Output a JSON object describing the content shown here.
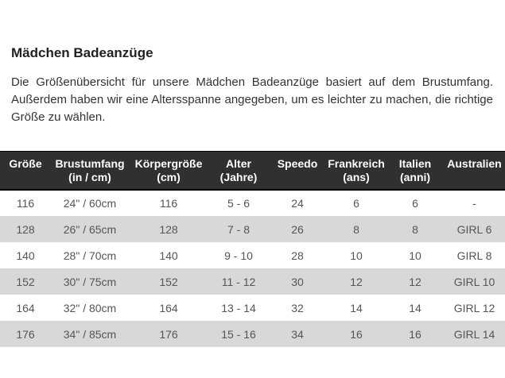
{
  "page": {
    "title": "Mädchen Badeanzüge",
    "intro": "Die Größenübersicht für unsere Mädchen Badeanzüge basiert auf dem Brustumfang. Außerdem haben wir eine Altersspanne angegeben, um es leichter zu machen, die richtige Größe zu wählen."
  },
  "size_table": {
    "columns": [
      {
        "label": "Größe",
        "sub": ""
      },
      {
        "label": "Brustumfang",
        "sub": "(in / cm)"
      },
      {
        "label": "Körpergröße",
        "sub": "(cm)"
      },
      {
        "label": "Alter",
        "sub": "(Jahre)"
      },
      {
        "label": "Speedo",
        "sub": ""
      },
      {
        "label": "Frankreich",
        "sub": "(ans)"
      },
      {
        "label": "Italien",
        "sub": "(anni)"
      },
      {
        "label": "Australien",
        "sub": ""
      }
    ],
    "rows": [
      [
        "116",
        "24\" / 60cm",
        "116",
        "5 - 6",
        "24",
        "6",
        "6",
        "-"
      ],
      [
        "128",
        "26\" / 65cm",
        "128",
        "7 - 8",
        "26",
        "8",
        "8",
        "GIRL 6"
      ],
      [
        "140",
        "28\" / 70cm",
        "140",
        "9 - 10",
        "28",
        "10",
        "10",
        "GIRL 8"
      ],
      [
        "152",
        "30\" / 75cm",
        "152",
        "11 - 12",
        "30",
        "12",
        "12",
        "GIRL 10"
      ],
      [
        "164",
        "32\" / 80cm",
        "164",
        "13 - 14",
        "32",
        "14",
        "14",
        "GIRL 12"
      ],
      [
        "176",
        "34\" / 85cm",
        "176",
        "15 - 16",
        "34",
        "16",
        "16",
        "GIRL 14"
      ]
    ]
  },
  "colors": {
    "header_bg": "#303030",
    "header_text": "#ffffff",
    "row_bg": "#ffffff",
    "row_alt_bg": "#d8d8d8",
    "cell_text": "#555555",
    "title_text": "#222222",
    "body_text": "#333333"
  }
}
